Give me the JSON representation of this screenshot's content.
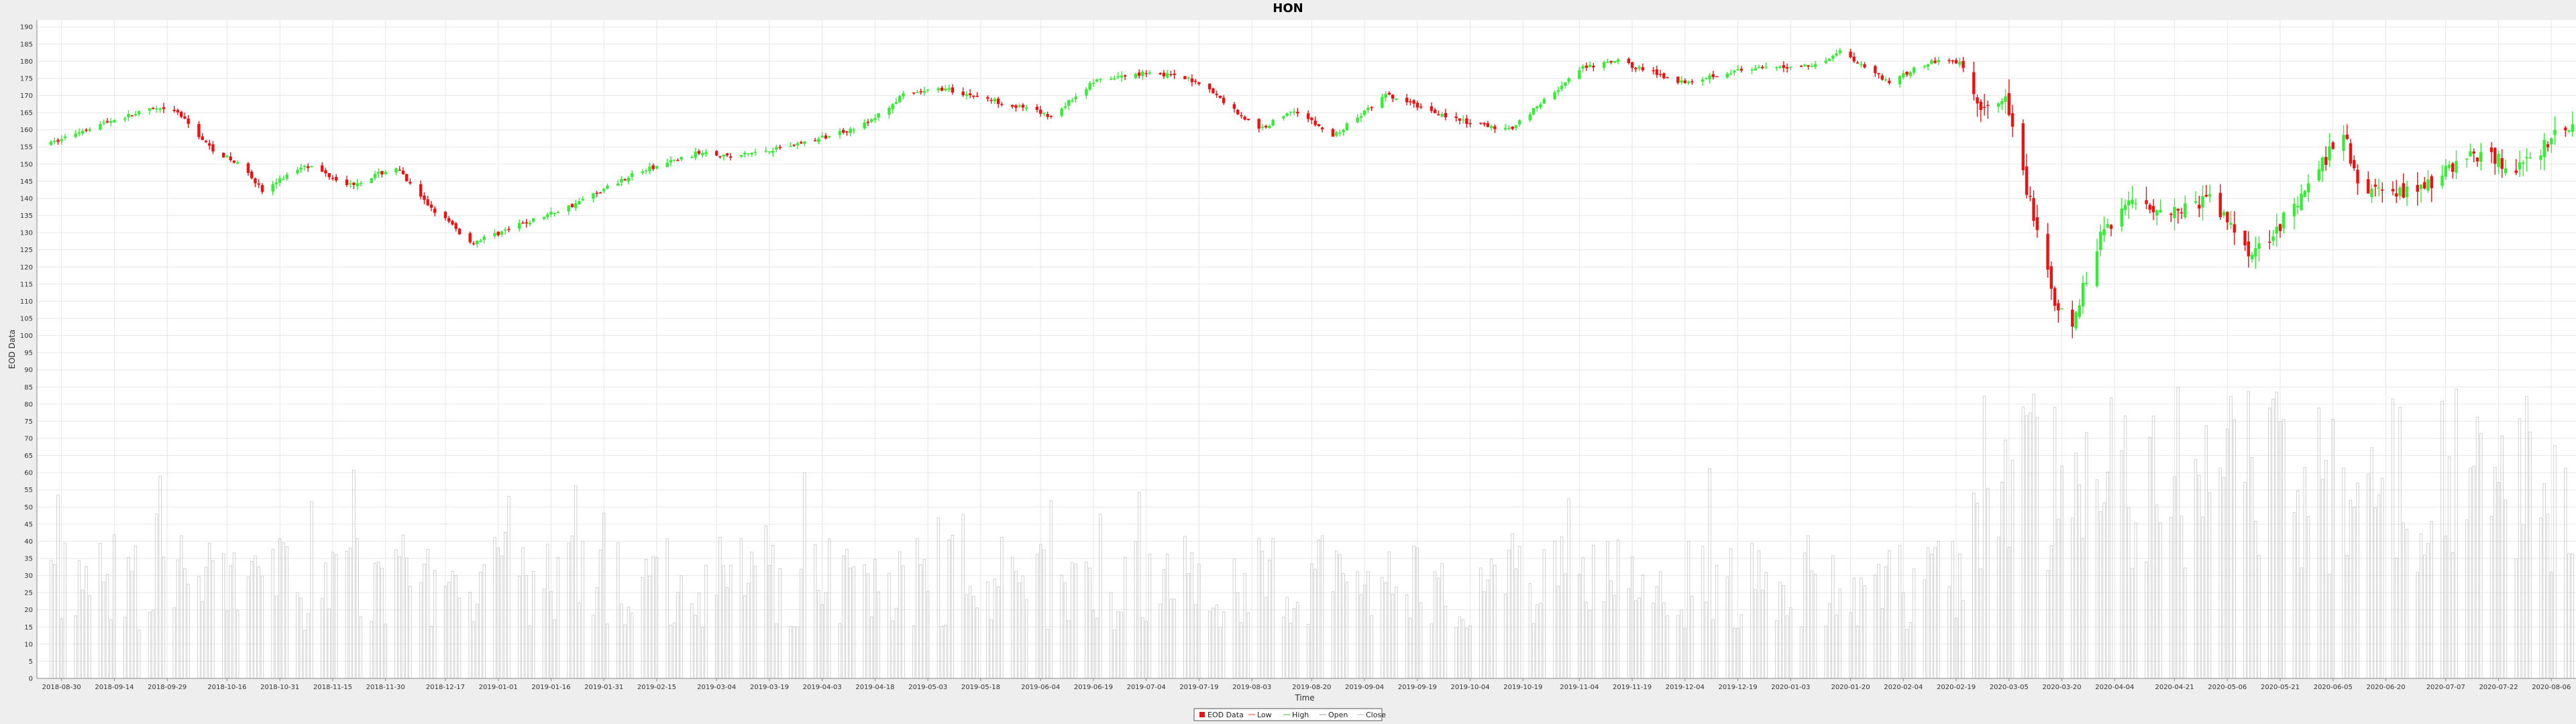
{
  "chart_data": {
    "type": "candlestick",
    "title": "HON",
    "xlabel": "Time",
    "ylabel": "EOD Data",
    "ylim": [
      0,
      192
    ],
    "ytick_step": 5,
    "grid": true,
    "legend_position": "bottom-center",
    "colors": {
      "up": "#33ee33",
      "down": "#ee1111",
      "volume": "#c8c8c8",
      "grid": "#e6e6e6",
      "plot_bg": "#ffffff"
    },
    "x_ticks": [
      "2018-08-30",
      "2018-09-14",
      "2018-09-29",
      "2018-10-16",
      "2018-10-31",
      "2018-11-15",
      "2018-11-30",
      "2018-12-17",
      "2019-01-01",
      "2019-01-16",
      "2019-01-31",
      "2019-02-15",
      "2019-03-04",
      "2019-03-19",
      "2019-04-03",
      "2019-04-18",
      "2019-05-03",
      "2019-05-18",
      "2019-06-04",
      "2019-06-19",
      "2019-07-04",
      "2019-07-19",
      "2019-08-03",
      "2019-08-20",
      "2019-09-04",
      "2019-09-19",
      "2019-10-04",
      "2019-10-19",
      "2019-11-04",
      "2019-11-19",
      "2019-12-04",
      "2019-12-19",
      "2020-01-03",
      "2020-01-20",
      "2020-02-04",
      "2020-02-19",
      "2020-03-05",
      "2020-03-20",
      "2020-04-04",
      "2020-04-21",
      "2020-05-06",
      "2020-05-21",
      "2020-06-05",
      "2020-06-20",
      "2020-07-07",
      "2020-07-22",
      "2020-08-06"
    ],
    "legend": [
      {
        "label": "EOD Data",
        "color": "#ee1111",
        "kind": "box"
      },
      {
        "label": "Low",
        "color": "#ff9999",
        "kind": "line"
      },
      {
        "label": "High",
        "color": "#99dd99",
        "kind": "line"
      },
      {
        "label": "Open",
        "color": "#cccccc",
        "kind": "line"
      },
      {
        "label": "Close",
        "color": "#dddddd",
        "kind": "line"
      }
    ],
    "close_anchors": [
      [
        "2018-08-27",
        156
      ],
      [
        "2018-09-05",
        160
      ],
      [
        "2018-09-14",
        163
      ],
      [
        "2018-09-25",
        166
      ],
      [
        "2018-10-02",
        165
      ],
      [
        "2018-10-11",
        155
      ],
      [
        "2018-10-22",
        148
      ],
      [
        "2018-10-26",
        142
      ],
      [
        "2018-11-07",
        150
      ],
      [
        "2018-11-20",
        144
      ],
      [
        "2018-12-03",
        149
      ],
      [
        "2018-12-10",
        140
      ],
      [
        "2018-12-19",
        132
      ],
      [
        "2018-12-24",
        127
      ],
      [
        "2019-01-04",
        131
      ],
      [
        "2019-01-22",
        138
      ],
      [
        "2019-02-08",
        147
      ],
      [
        "2019-03-01",
        154
      ],
      [
        "2019-03-08",
        152
      ],
      [
        "2019-04-01",
        157
      ],
      [
        "2019-04-16",
        162
      ],
      [
        "2019-04-26",
        170
      ],
      [
        "2019-05-07",
        172
      ],
      [
        "2019-05-24",
        168
      ],
      [
        "2019-06-07",
        164
      ],
      [
        "2019-06-19",
        174
      ],
      [
        "2019-07-05",
        177
      ],
      [
        "2019-07-19",
        174
      ],
      [
        "2019-08-05",
        160
      ],
      [
        "2019-08-15",
        166
      ],
      [
        "2019-08-26",
        158
      ],
      [
        "2019-09-10",
        170
      ],
      [
        "2019-09-19",
        167
      ],
      [
        "2019-10-03",
        162
      ],
      [
        "2019-10-15",
        160
      ],
      [
        "2019-11-05",
        178
      ],
      [
        "2019-11-15",
        180
      ],
      [
        "2019-12-03",
        174
      ],
      [
        "2019-12-17",
        177
      ],
      [
        "2020-01-10",
        179
      ],
      [
        "2020-01-17",
        183
      ],
      [
        "2020-01-31",
        174
      ],
      [
        "2020-02-12",
        180
      ],
      [
        "2020-02-20",
        180
      ],
      [
        "2020-02-26",
        165
      ],
      [
        "2020-03-04",
        168
      ],
      [
        "2020-03-12",
        135
      ],
      [
        "2020-03-18",
        108
      ],
      [
        "2020-03-23",
        103
      ],
      [
        "2020-03-31",
        130
      ],
      [
        "2020-04-09",
        140
      ],
      [
        "2020-04-20",
        136
      ],
      [
        "2020-05-01",
        140
      ],
      [
        "2020-05-13",
        124
      ],
      [
        "2020-05-26",
        138
      ],
      [
        "2020-06-08",
        160
      ],
      [
        "2020-06-12",
        143
      ],
      [
        "2020-06-24",
        142
      ],
      [
        "2020-07-02",
        144
      ],
      [
        "2020-07-14",
        153
      ],
      [
        "2020-07-29",
        149
      ],
      [
        "2020-08-07",
        158
      ],
      [
        "2020-08-12",
        162
      ]
    ]
  }
}
